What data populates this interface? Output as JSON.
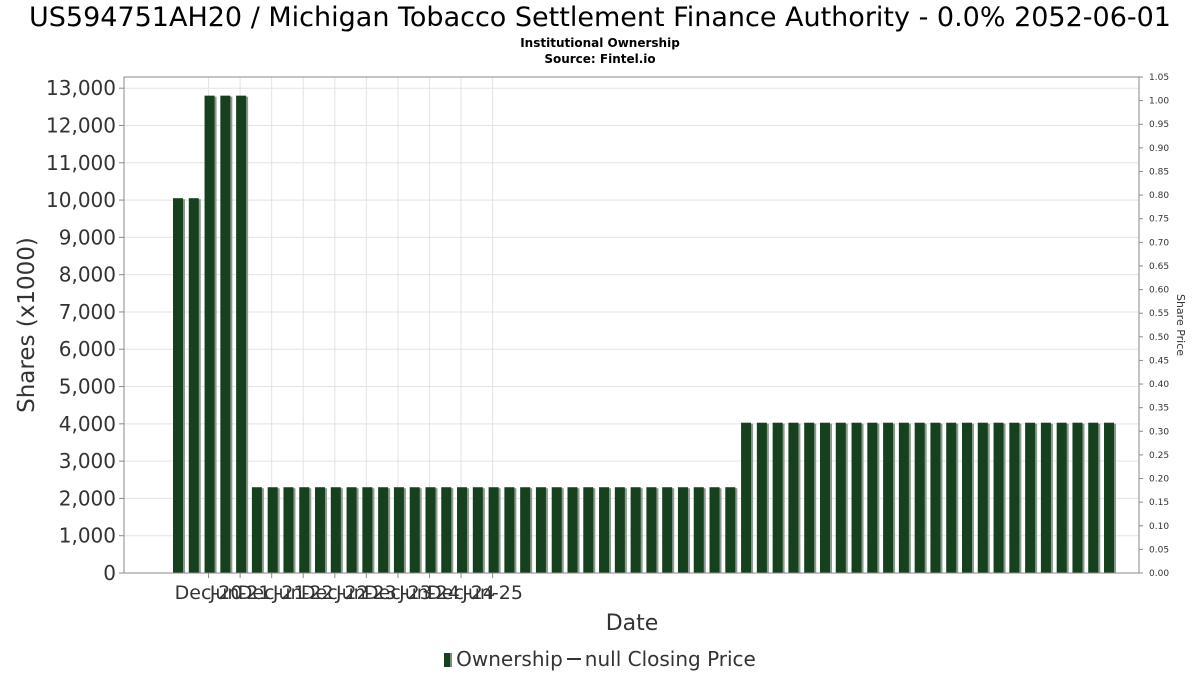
{
  "chart_data": {
    "type": "bar",
    "title": "US594751AH20 / Michigan Tobacco Settlement Finance Authority - 0.0% 2052-06-01",
    "subtitle_lines": [
      "Institutional Ownership",
      "Source: Fintel.io"
    ],
    "xlabel": "Date",
    "ylabel": "Shares (x1000)",
    "y2label": "Share Price",
    "ylim": [
      0,
      13300
    ],
    "y2lim": [
      0,
      1.05
    ],
    "yticks": [
      "0",
      "1,000",
      "2,000",
      "3,000",
      "4,000",
      "5,000",
      "6,000",
      "7,000",
      "8,000",
      "9,000",
      "10,000",
      "11,000",
      "12,000",
      "13,000"
    ],
    "y2ticks": [
      "0.00",
      "0.05",
      "0.10",
      "0.15",
      "0.20",
      "0.25",
      "0.30",
      "0.35",
      "0.40",
      "0.45",
      "0.50",
      "0.55",
      "0.60",
      "0.65",
      "0.70",
      "0.75",
      "0.80",
      "0.85",
      "0.90",
      "0.95",
      "1.00",
      "1.05"
    ],
    "xticks": [
      "Dec-20",
      "Jun-21",
      "Dec-21",
      "Jun-22",
      "Dec-22",
      "Jun-23",
      "Dec-23",
      "Jun-24",
      "Dec-24",
      "Jun-25"
    ],
    "grid": true,
    "legend_position": "bottom",
    "series": [
      {
        "name": "Ownership",
        "color": "#17401f",
        "values": [
          10050,
          10050,
          12800,
          12800,
          12800,
          2300,
          2300,
          2300,
          2300,
          2300,
          2300,
          2300,
          2300,
          2300,
          2300,
          2300,
          2300,
          2300,
          2300,
          2300,
          2300,
          2300,
          2300,
          2300,
          2300,
          2300,
          2300,
          2300,
          2300,
          2300,
          2300,
          2300,
          2300,
          2300,
          2300,
          2300,
          4030,
          4030,
          4030,
          4030,
          4030,
          4030,
          4030,
          4030,
          4030,
          4030,
          4030,
          4030,
          4030,
          4030,
          4030,
          4030,
          4030,
          4030,
          4030,
          4030,
          4030,
          4030,
          4030,
          4030
        ]
      }
    ],
    "legend_entries": [
      {
        "label": "Ownership",
        "marker": "bar",
        "color": "#17401f"
      },
      {
        "label": "null Closing Price",
        "marker": "line",
        "color": "#333333"
      }
    ]
  }
}
